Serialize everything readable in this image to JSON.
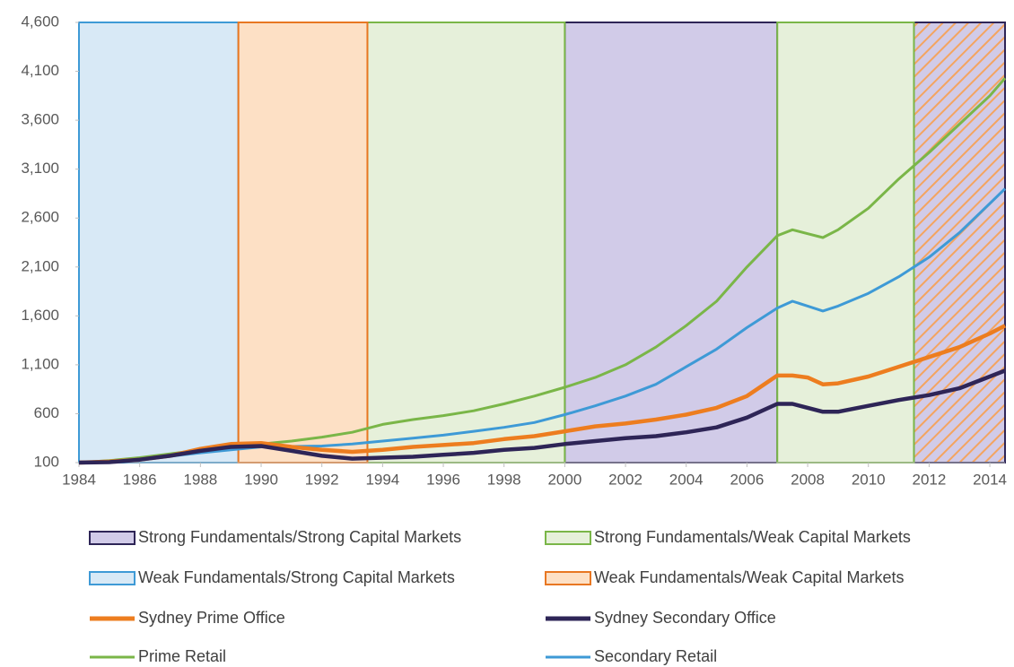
{
  "chart_data": {
    "type": "line",
    "x": [
      1984,
      1985,
      1986,
      1987,
      1988,
      1989,
      1990,
      1991,
      1992,
      1993,
      1994,
      1995,
      1996,
      1997,
      1998,
      1999,
      2000,
      2001,
      2002,
      2003,
      2004,
      2005,
      2006,
      2007,
      2007.5,
      2008,
      2008.5,
      2009,
      2010,
      2011,
      2012,
      2013,
      2014,
      2014.5
    ],
    "xlim": [
      1984,
      2014.5
    ],
    "xticks": [
      1984,
      1986,
      1988,
      1990,
      1992,
      1994,
      1996,
      1998,
      2000,
      2002,
      2004,
      2006,
      2008,
      2010,
      2012,
      2014
    ],
    "ylim": [
      100,
      4600
    ],
    "yticks": [
      100,
      600,
      {
        "value": 1100,
        "label": "1,100"
      },
      {
        "value": 1600,
        "label": "1,600"
      },
      {
        "value": 2100,
        "label": "2,100"
      },
      {
        "value": 2600,
        "label": "2,600"
      },
      {
        "value": 3100,
        "label": "3,100"
      },
      {
        "value": 3600,
        "label": "3,600"
      },
      {
        "value": 4100,
        "label": "4,100"
      },
      {
        "value": 4600,
        "label": "4,600"
      }
    ],
    "regions": [
      {
        "name": "Strong Fundamentals/Strong Capital Markets",
        "fill": "#d1cbe8",
        "color": "#2e2557",
        "spans": [
          [
            2000,
            2007
          ]
        ],
        "hatched_spans": [
          [
            2011.5,
            2014.5
          ]
        ],
        "hatch_color": "#f4a460"
      },
      {
        "name": "Strong Fundamentals/Weak Capital Markets",
        "fill": "#e6f0da",
        "color": "#7ab648",
        "spans": [
          [
            1993.5,
            2000
          ],
          [
            2007,
            2011.5
          ]
        ]
      },
      {
        "name": "Weak Fundamentals/Strong Capital Markets",
        "fill": "#d8e9f6",
        "color": "#3e9ad6",
        "spans": [
          [
            1984,
            1989.25
          ]
        ]
      },
      {
        "name": "Weak Fundamentals/Weak Capital Markets",
        "fill": "#fde0c5",
        "color": "#e87722",
        "spans": [
          [
            1989.25,
            1993.5
          ]
        ]
      }
    ],
    "series": [
      {
        "name": "Sydney Prime Office",
        "color": "#ed7d1f",
        "values": [
          100,
          110,
          130,
          170,
          240,
          290,
          300,
          260,
          230,
          210,
          230,
          260,
          280,
          300,
          340,
          370,
          420,
          470,
          500,
          540,
          590,
          660,
          780,
          990,
          990,
          970,
          900,
          910,
          980,
          1080,
          1180,
          1280,
          1420,
          1500
        ]
      },
      {
        "name": "Sydney Secondary Office",
        "color": "#2e2557",
        "values": [
          100,
          105,
          130,
          170,
          220,
          260,
          270,
          220,
          170,
          140,
          150,
          160,
          180,
          200,
          230,
          250,
          290,
          320,
          350,
          370,
          410,
          460,
          560,
          700,
          700,
          660,
          620,
          620,
          680,
          740,
          790,
          860,
          980,
          1040
        ]
      },
      {
        "name": "Prime Retail",
        "color": "#7ab648",
        "values": [
          100,
          120,
          150,
          190,
          230,
          260,
          290,
          320,
          360,
          410,
          490,
          540,
          580,
          630,
          700,
          780,
          870,
          970,
          1100,
          1280,
          1500,
          1750,
          2100,
          2420,
          2480,
          2440,
          2400,
          2480,
          2700,
          3000,
          3270,
          3560,
          3850,
          4030
        ]
      },
      {
        "name": "Secondary Retail",
        "color": "#3e9ad6",
        "values": [
          100,
          110,
          135,
          165,
          200,
          230,
          260,
          265,
          270,
          290,
          320,
          350,
          380,
          420,
          460,
          510,
          590,
          680,
          780,
          900,
          1080,
          1260,
          1480,
          1680,
          1750,
          1700,
          1650,
          1700,
          1830,
          2000,
          2200,
          2450,
          2750,
          2900
        ]
      }
    ]
  }
}
